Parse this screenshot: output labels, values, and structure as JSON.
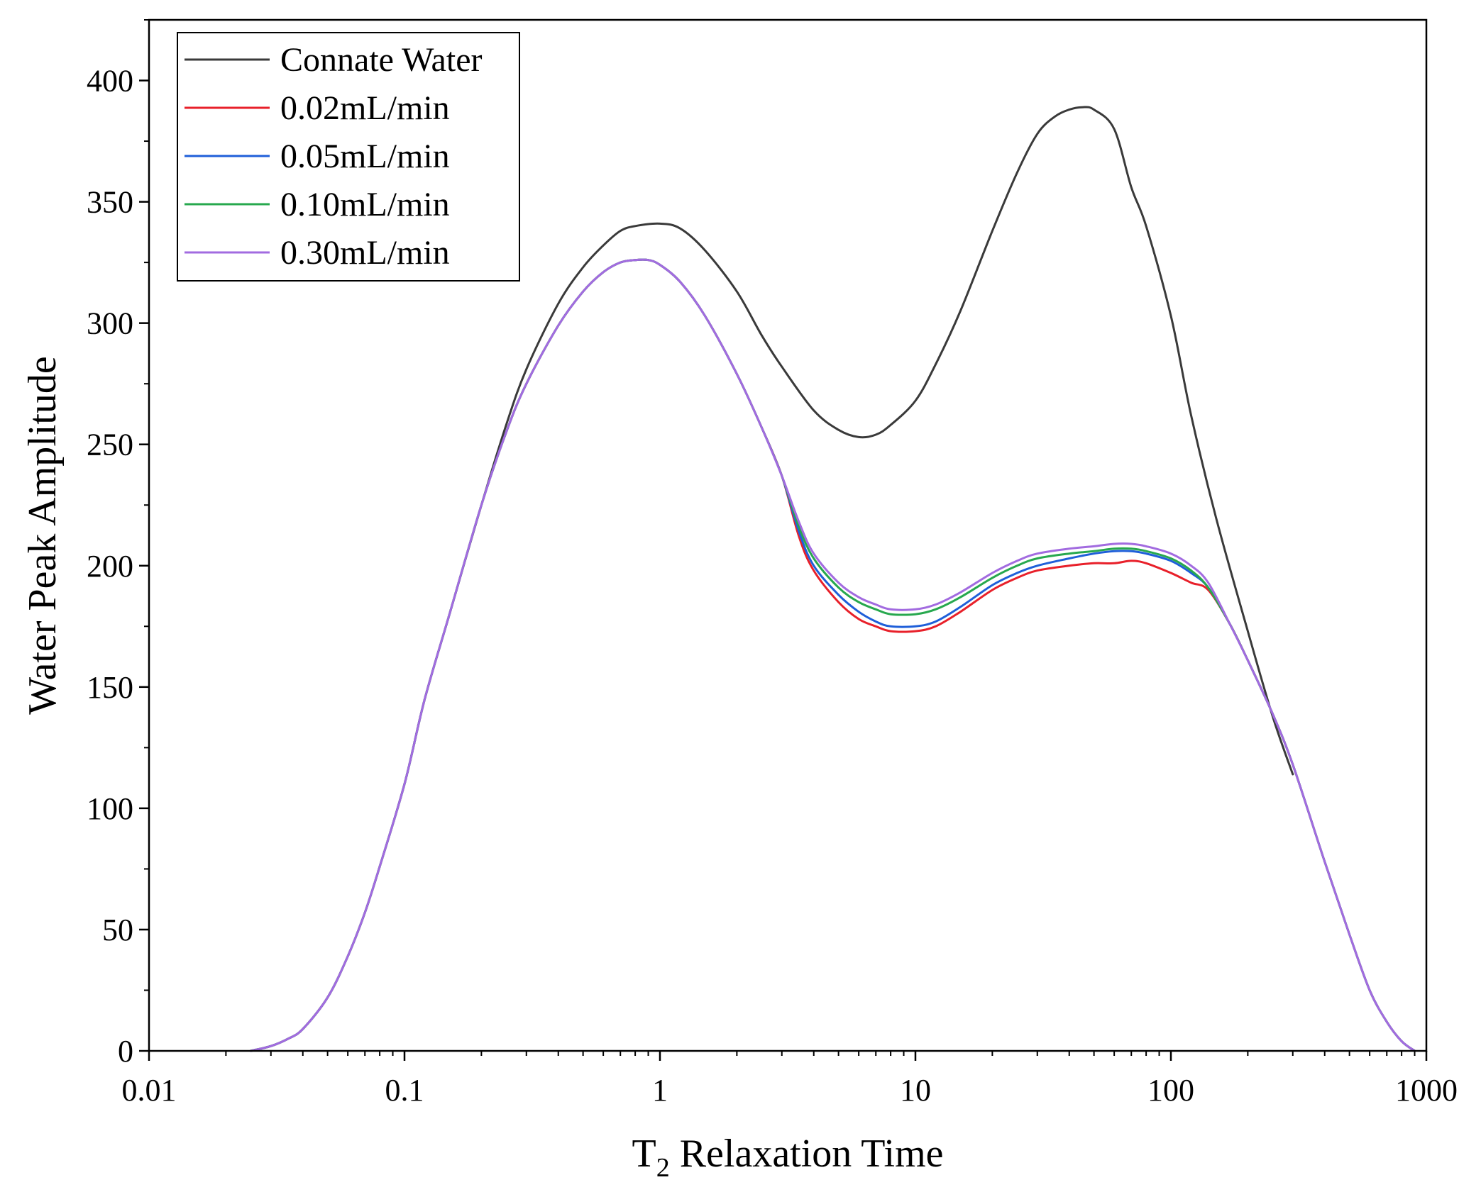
{
  "chart_data": {
    "type": "line",
    "title": "",
    "xlabel": {
      "main": "T",
      "subscript": "2",
      "rest": " Relaxation Time"
    },
    "ylabel": "Water Peak Amplitude",
    "xscale": "log",
    "xlim": [
      0.01,
      1000
    ],
    "ylim": [
      0,
      425
    ],
    "xticks": [
      0.01,
      0.1,
      1,
      10,
      100,
      1000
    ],
    "xtick_labels": [
      "0.01",
      "0.1",
      "1",
      "10",
      "100",
      "1000"
    ],
    "yticks": [
      0,
      50,
      100,
      150,
      200,
      250,
      300,
      350,
      400
    ],
    "ytick_labels": [
      "0",
      "50",
      "100",
      "150",
      "200",
      "250",
      "300",
      "350",
      "400"
    ],
    "legend_position": "top-left",
    "grid": false,
    "series": [
      {
        "name": "Connate Water",
        "color": "#3a3a3a",
        "x": [
          0.025,
          0.03,
          0.035,
          0.04,
          0.05,
          0.06,
          0.07,
          0.08,
          0.1,
          0.12,
          0.15,
          0.2,
          0.25,
          0.3,
          0.4,
          0.5,
          0.6,
          0.7,
          0.8,
          1.0,
          1.2,
          1.5,
          2.0,
          2.5,
          3.0,
          4.0,
          5.0,
          6.0,
          7.0,
          8.0,
          10,
          12,
          15,
          20,
          25,
          30,
          35,
          40,
          45,
          50,
          60,
          70,
          80,
          100,
          120,
          150,
          200,
          250,
          300
        ],
        "y": [
          0,
          2,
          5,
          9,
          22,
          39,
          57,
          76,
          110,
          145,
          180,
          225,
          258,
          281,
          308,
          323,
          332,
          338,
          340,
          341,
          339,
          330,
          313,
          295,
          282,
          264,
          256,
          253,
          254,
          258,
          268,
          283,
          305,
          338,
          362,
          378,
          385,
          388,
          389,
          388,
          380,
          356,
          340,
          303,
          262,
          220,
          173,
          138,
          114
        ]
      },
      {
        "name": "0.02mL/min",
        "color": "#e8202a",
        "x": [
          0.025,
          0.03,
          0.035,
          0.04,
          0.05,
          0.06,
          0.07,
          0.08,
          0.1,
          0.12,
          0.15,
          0.2,
          0.25,
          0.3,
          0.4,
          0.5,
          0.6,
          0.7,
          0.8,
          0.9,
          1.0,
          1.2,
          1.5,
          2.0,
          2.5,
          3.0,
          3.5,
          4.0,
          5.0,
          6.0,
          7.0,
          8.0,
          10,
          12,
          15,
          20,
          25,
          30,
          40,
          50,
          60,
          70,
          80,
          100,
          120,
          140,
          170,
          200,
          250,
          300,
          400,
          500,
          600,
          700,
          800,
          900
        ],
        "y": [
          0,
          2,
          5,
          9,
          22,
          39,
          57,
          76,
          110,
          145,
          180,
          225,
          255,
          275,
          299,
          313,
          321,
          325,
          326,
          326,
          324,
          317,
          303,
          279,
          257,
          237,
          212,
          198,
          185,
          178,
          175,
          173,
          173,
          175,
          181,
          190,
          195,
          198,
          200,
          201,
          201,
          202,
          201,
          197,
          193,
          190,
          176,
          161,
          139,
          118,
          78,
          48,
          25,
          12,
          4,
          0
        ]
      },
      {
        "name": "0.05mL/min",
        "color": "#1f5fd9",
        "x": [
          0.025,
          0.03,
          0.035,
          0.04,
          0.05,
          0.06,
          0.07,
          0.08,
          0.1,
          0.12,
          0.15,
          0.2,
          0.25,
          0.3,
          0.4,
          0.5,
          0.6,
          0.7,
          0.8,
          0.9,
          1.0,
          1.2,
          1.5,
          2.0,
          2.5,
          3.0,
          3.5,
          4.0,
          5.0,
          6.0,
          7.0,
          8.0,
          10,
          12,
          15,
          20,
          25,
          30,
          40,
          50,
          60,
          70,
          80,
          100,
          120,
          140,
          170,
          200,
          250,
          300,
          400,
          500,
          600,
          700,
          800,
          900
        ],
        "y": [
          0,
          2,
          5,
          9,
          22,
          39,
          57,
          76,
          110,
          145,
          180,
          225,
          255,
          275,
          299,
          313,
          321,
          325,
          326,
          326,
          324,
          317,
          303,
          279,
          257,
          237,
          214,
          200,
          188,
          181,
          177,
          175,
          175,
          177,
          183,
          192,
          197,
          200,
          203,
          205,
          206,
          206,
          205,
          202,
          197,
          191,
          176,
          161,
          139,
          118,
          78,
          48,
          25,
          12,
          4,
          0
        ]
      },
      {
        "name": "0.10mL/min",
        "color": "#27a84e",
        "x": [
          0.025,
          0.03,
          0.035,
          0.04,
          0.05,
          0.06,
          0.07,
          0.08,
          0.1,
          0.12,
          0.15,
          0.2,
          0.25,
          0.3,
          0.4,
          0.5,
          0.6,
          0.7,
          0.8,
          0.9,
          1.0,
          1.2,
          1.5,
          2.0,
          2.5,
          3.0,
          3.5,
          4.0,
          5.0,
          6.0,
          7.0,
          8.0,
          10,
          12,
          15,
          20,
          25,
          30,
          40,
          50,
          60,
          70,
          80,
          100,
          120,
          140,
          170,
          200,
          250,
          300,
          400,
          500,
          600,
          700,
          800,
          900
        ],
        "y": [
          0,
          2,
          5,
          9,
          22,
          39,
          57,
          76,
          110,
          145,
          180,
          225,
          255,
          275,
          299,
          313,
          321,
          325,
          326,
          326,
          324,
          317,
          303,
          279,
          257,
          237,
          216,
          203,
          191,
          185,
          182,
          180,
          180,
          182,
          187,
          195,
          200,
          203,
          205,
          206,
          207,
          207,
          206,
          203,
          198,
          191,
          176,
          161,
          139,
          118,
          78,
          48,
          25,
          12,
          4,
          0
        ]
      },
      {
        "name": "0.30mL/min",
        "color": "#a26be0",
        "x": [
          0.025,
          0.03,
          0.035,
          0.04,
          0.05,
          0.06,
          0.07,
          0.08,
          0.1,
          0.12,
          0.15,
          0.2,
          0.25,
          0.3,
          0.4,
          0.5,
          0.6,
          0.7,
          0.8,
          0.9,
          1.0,
          1.2,
          1.5,
          2.0,
          2.5,
          3.0,
          3.5,
          4.0,
          5.0,
          6.0,
          7.0,
          8.0,
          10,
          12,
          15,
          20,
          25,
          30,
          40,
          50,
          60,
          70,
          80,
          100,
          120,
          140,
          170,
          200,
          250,
          300,
          400,
          500,
          600,
          700,
          800,
          900
        ],
        "y": [
          0,
          2,
          5,
          9,
          22,
          39,
          57,
          76,
          110,
          145,
          180,
          225,
          255,
          275,
          299,
          313,
          321,
          325,
          326,
          326,
          324,
          317,
          303,
          279,
          257,
          237,
          218,
          205,
          193,
          187,
          184,
          182,
          182,
          184,
          189,
          197,
          202,
          205,
          207,
          208,
          209,
          209,
          208,
          205,
          200,
          193,
          176,
          161,
          139,
          118,
          78,
          48,
          25,
          12,
          4,
          0
        ]
      }
    ]
  }
}
